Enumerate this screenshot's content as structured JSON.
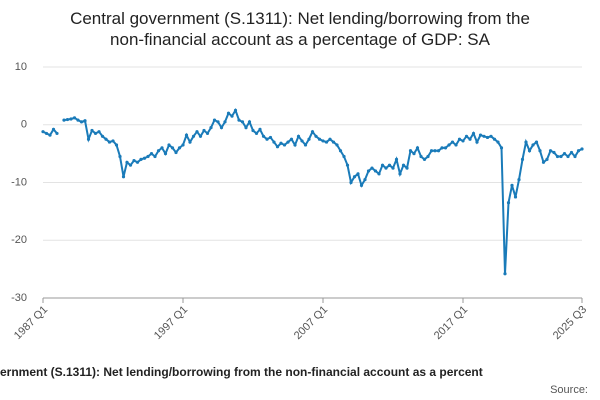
{
  "chart_data": {
    "type": "line",
    "title": "Central government (S.1311): Net lending/borrowing from the non-financial account as a percentage of GDP: SA",
    "footer": "ernment (S.1311): Net lending/borrowing from the non-financial account as a percent",
    "source": "Source:",
    "categories": [
      "1987 Q1",
      null,
      null,
      null,
      null,
      null,
      null,
      null,
      null,
      null,
      null,
      null,
      null,
      null,
      null,
      null,
      null,
      null,
      null,
      null,
      null,
      null,
      null,
      null,
      null,
      null,
      null,
      null,
      null,
      null,
      null,
      null,
      null,
      null,
      null,
      null,
      null,
      null,
      null,
      null,
      "1997 Q1",
      null,
      null,
      null,
      null,
      null,
      null,
      null,
      null,
      null,
      null,
      null,
      null,
      null,
      null,
      null,
      null,
      null,
      null,
      null,
      null,
      null,
      null,
      null,
      null,
      null,
      null,
      null,
      null,
      null,
      null,
      null,
      null,
      null,
      null,
      null,
      null,
      null,
      null,
      null,
      "2007 Q1",
      null,
      null,
      null,
      null,
      null,
      null,
      null,
      null,
      null,
      null,
      null,
      null,
      null,
      null,
      null,
      null,
      null,
      null,
      null,
      null,
      null,
      null,
      null,
      null,
      null,
      null,
      null,
      null,
      null,
      null,
      null,
      null,
      null,
      null,
      null,
      null,
      null,
      null,
      null,
      "2017 Q1",
      null,
      null,
      null,
      null,
      null,
      null,
      null,
      null,
      null,
      null,
      null,
      null,
      null,
      null,
      null,
      null,
      null,
      null,
      null,
      null,
      null,
      null,
      null,
      null,
      null,
      null,
      null,
      null,
      null,
      null,
      null,
      null,
      null,
      "2025 Q3"
    ],
    "series": [
      {
        "name": "Net lending/borrowing",
        "color": "#1a7bb9",
        "values": [
          -1.2,
          -1.5,
          -1.8,
          -0.8,
          -1.5,
          null,
          0.8,
          0.9,
          1.0,
          1.2,
          0.8,
          0.5,
          0.7,
          -2.5,
          -1.0,
          -1.5,
          -1.2,
          -2.0,
          -2.5,
          -3.0,
          -2.8,
          -3.5,
          -5.5,
          -9.0,
          -6.5,
          -7.0,
          -6.2,
          -6.5,
          -6.0,
          -5.8,
          -5.5,
          -5.0,
          -5.5,
          -4.5,
          -4.0,
          -5.0,
          -3.5,
          -4.0,
          -4.8,
          -4.0,
          -3.5,
          -1.8,
          -3.0,
          -2.0,
          -1.2,
          -2.0,
          -1.0,
          -1.5,
          -0.5,
          0.8,
          0.5,
          -0.5,
          0.5,
          2.0,
          1.5,
          2.5,
          0.8,
          0.5,
          -0.5,
          0.5,
          -1.0,
          -1.5,
          -0.8,
          -2.0,
          -2.5,
          -2.2,
          -3.0,
          -3.8,
          -3.2,
          -3.5,
          -3.0,
          -2.5,
          -3.5,
          -2.0,
          -2.8,
          -3.5,
          -2.5,
          -1.2,
          -2.0,
          -2.5,
          -2.8,
          -3.0,
          -2.5,
          -3.0,
          -3.5,
          -4.5,
          -5.5,
          -7.0,
          -10.0,
          -9.0,
          -8.5,
          -10.5,
          -9.5,
          -8.0,
          -7.5,
          -8.0,
          -8.5,
          -7.0,
          -7.5,
          -7.0,
          -7.5,
          -6.0,
          -8.5,
          -7.0,
          -7.5,
          -4.5,
          -5.0,
          -4.0,
          -5.5,
          -6.0,
          -5.5,
          -4.5,
          -4.5,
          -4.5,
          -4.0,
          -4.0,
          -3.5,
          -3.0,
          -3.5,
          -2.5,
          -2.8,
          -2.0,
          -2.5,
          -1.5,
          -3.0,
          -1.8,
          -2.0,
          -2.2,
          -2.0,
          -2.5,
          -3.0,
          -4.0,
          -25.8,
          -13.5,
          -10.5,
          -12.5,
          -9.5,
          -6.0,
          -3.0,
          -4.5,
          -3.5,
          -3.0,
          -4.5,
          -6.5,
          -6.0,
          -4.5,
          -4.8,
          -5.5,
          -5.5,
          -5.0,
          -5.5,
          -4.8,
          -5.5,
          -4.5,
          -4.2
        ]
      }
    ],
    "ylim": [
      -30,
      10
    ],
    "yticks": [
      10,
      0,
      -10,
      -20,
      -30
    ],
    "grid": true
  }
}
